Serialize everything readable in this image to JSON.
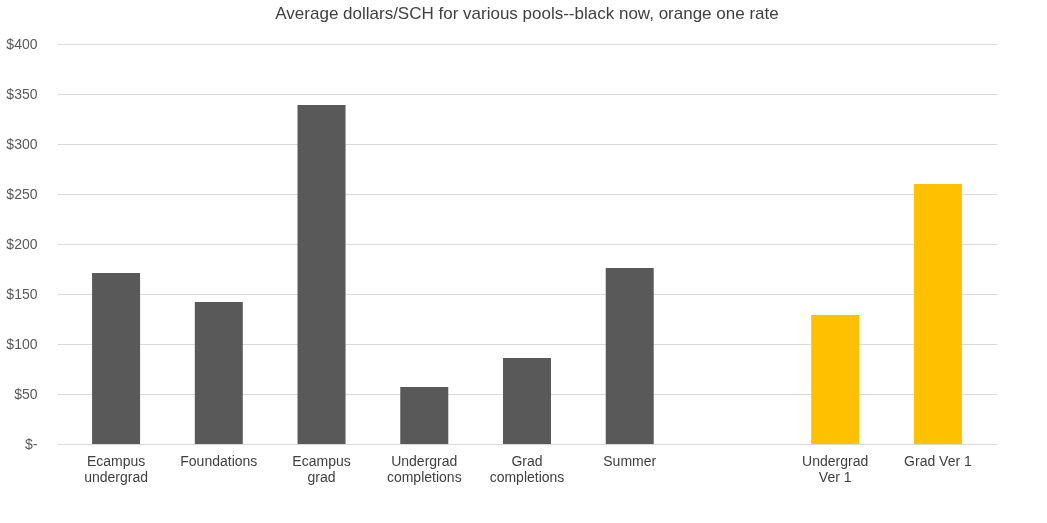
{
  "chart_data": {
    "type": "bar",
    "title": "Average dollars/SCH for various pools--black now, orange one rate",
    "categories": [
      "Ecampus undergrad",
      "Foundations",
      "Ecampus grad",
      "Undergrad completions",
      "Grad completions",
      "Summer",
      null,
      "Undergrad Ver 1",
      "Grad Ver 1"
    ],
    "values": [
      171,
      142,
      339,
      57,
      86,
      176,
      null,
      129,
      260
    ],
    "colors": [
      "#595959",
      "#595959",
      "#595959",
      "#595959",
      "#595959",
      "#595959",
      "#595959",
      "#ffc000",
      "#ffc000"
    ],
    "ylim": [
      0,
      400
    ],
    "yticks": [
      {
        "value": 0,
        "label": "$-"
      },
      {
        "value": 50,
        "label": "$50"
      },
      {
        "value": 100,
        "label": "$100"
      },
      {
        "value": 150,
        "label": "$150"
      },
      {
        "value": 200,
        "label": "$200"
      },
      {
        "value": 250,
        "label": "$250"
      },
      {
        "value": 300,
        "label": "$300"
      },
      {
        "value": 350,
        "label": "$350"
      },
      {
        "value": 400,
        "label": "$400"
      }
    ],
    "grid": "y"
  }
}
